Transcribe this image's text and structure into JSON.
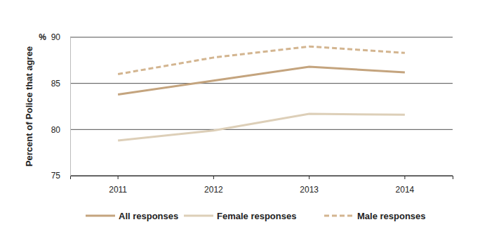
{
  "chart_data": {
    "type": "line",
    "y_label": "Percent of Police that agree",
    "y_unit": "%",
    "categories": [
      "2011",
      "2012",
      "2013",
      "2014"
    ],
    "series": [
      {
        "name": "All responses",
        "color": "#c4a47e",
        "line_style": "solid",
        "values": [
          83.8,
          85.3,
          86.8,
          86.2
        ]
      },
      {
        "name": "Female responses",
        "color": "#ddcfb8",
        "line_style": "solid",
        "values": [
          78.8,
          79.9,
          81.7,
          81.6
        ]
      },
      {
        "name": "Male responses",
        "color": "#d3b590",
        "line_style": "dashed",
        "values": [
          86.0,
          87.8,
          89.0,
          88.3
        ]
      }
    ],
    "ylim": [
      75,
      90
    ],
    "yticks": [
      75,
      80,
      85,
      90
    ],
    "grid": true,
    "legend": "bottom"
  }
}
